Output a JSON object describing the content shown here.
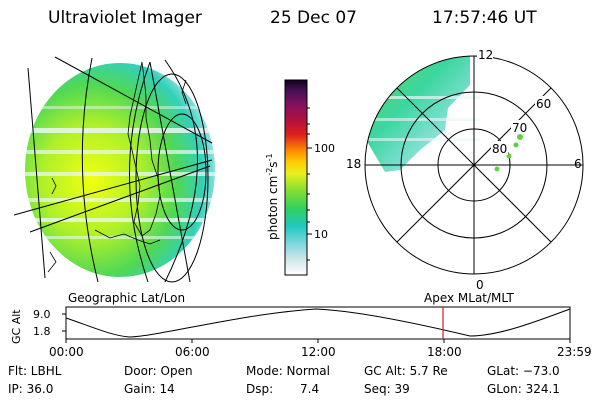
{
  "header": {
    "instrument": "Ultraviolet Imager",
    "date": "25 Dec 07",
    "time": "17:57:46 UT"
  },
  "colorbar": {
    "label_main": "photon cm",
    "label_exp1": "-2",
    "label_mid": "s",
    "label_exp2": "-1",
    "ticks": [
      "100",
      "10"
    ]
  },
  "polar_plot": {
    "mlt_labels": {
      "top": "12",
      "left": "18",
      "right": "6",
      "bottom": "0"
    },
    "lat_labels": [
      "60",
      "70",
      "80"
    ]
  },
  "panel_titles": {
    "left": "Geographic Lat/Lon",
    "right": "Apex  MLat/MLT"
  },
  "altitude_plot": {
    "ylabel": "GC Alt",
    "yticks": [
      "9.0",
      "1.8"
    ],
    "xticks": [
      "00:00",
      "06:00",
      "12:00",
      "18:00",
      "23:59"
    ],
    "marker_time": "17:57"
  },
  "status": {
    "flt": "Flt: LBHL",
    "ip": "IP: 36.0",
    "door": "Door: Open",
    "gain": "Gain: 14",
    "mode": "Mode: Normal",
    "dsp_label": "Dsp:",
    "dsp_value": "7.4",
    "gc_alt": "GC Alt: 5.7 Re",
    "seq": "Seq: 39",
    "glat": "GLat: −73.0",
    "glon": "GLon: 324.1"
  },
  "colors": {
    "marker": "#cc2222",
    "aurora_green": "#5ed23c",
    "aurora_cyan": "#3fd0c0"
  }
}
